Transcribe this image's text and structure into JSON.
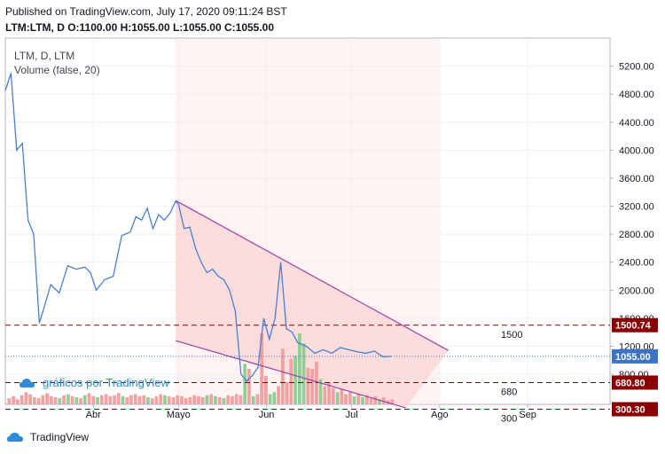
{
  "header": {
    "published": "Published on TradingView.com, July 17, 2020 09:11:24 BST",
    "ohlc": "LTM:LTM, D O:1100.00 H:1055.00 L:1055.00 C:1055.00"
  },
  "overlay": {
    "symbol": "LTM, D, LTM",
    "volume": "Volume (false, 20)"
  },
  "watermark": "gráficos por TradingView",
  "brand": "TradingView",
  "colors": {
    "price_line": "#4a7fd3",
    "channel": "#9c3fa8",
    "shade": "#fcd6d6",
    "level_line": "#8b0000",
    "last_price_badge": "#3d72c7",
    "vol_up": "#8fcf96",
    "vol_down": "#f2a0a0"
  },
  "chart_data": {
    "type": "line",
    "title": "LTM, D, LTM",
    "x_ticks": [
      "Abr",
      "Mayo",
      "Jun",
      "Jul",
      "Ago",
      "Sep"
    ],
    "y_ticks": [
      800,
      1200,
      1600,
      2000,
      2400,
      2800,
      3200,
      3600,
      4000,
      4400,
      4800,
      5200
    ],
    "ylim": [
      370,
      5600
    ],
    "x_range": [
      "2020-03-01",
      "2020-09-30"
    ],
    "grid": true,
    "series": [
      {
        "type": "line",
        "x": [
          "2020-03-01",
          "2020-03-03",
          "2020-03-05",
          "2020-03-07",
          "2020-03-09",
          "2020-03-11",
          "2020-03-13",
          "2020-03-15",
          "2020-03-17",
          "2020-03-20",
          "2020-03-23",
          "2020-03-26",
          "2020-03-29",
          "2020-03-31",
          "2020-04-02",
          "2020-04-05",
          "2020-04-08",
          "2020-04-11",
          "2020-04-14",
          "2020-04-16",
          "2020-04-18",
          "2020-04-20",
          "2020-04-22",
          "2020-04-24",
          "2020-04-26",
          "2020-04-28",
          "2020-04-30",
          "2020-05-01",
          "2020-05-03",
          "2020-05-05",
          "2020-05-07",
          "2020-05-09",
          "2020-05-11",
          "2020-05-13",
          "2020-05-15",
          "2020-05-17",
          "2020-05-19",
          "2020-05-21",
          "2020-05-23",
          "2020-05-25",
          "2020-05-27",
          "2020-05-29",
          "2020-05-31",
          "2020-06-02",
          "2020-06-04",
          "2020-06-06",
          "2020-06-08",
          "2020-06-10",
          "2020-06-12",
          "2020-06-15",
          "2020-06-18",
          "2020-06-21",
          "2020-06-24",
          "2020-06-27",
          "2020-06-30",
          "2020-07-03",
          "2020-07-06",
          "2020-07-09",
          "2020-07-12",
          "2020-07-15"
        ],
        "y": [
          4850,
          5100,
          4000,
          4100,
          3000,
          2800,
          1530,
          1800,
          2080,
          1960,
          2350,
          2300,
          2330,
          2250,
          2000,
          2150,
          2200,
          2780,
          2830,
          3050,
          3000,
          3170,
          2880,
          3080,
          3000,
          3100,
          3270,
          3230,
          2880,
          2900,
          2600,
          2400,
          2250,
          2300,
          2200,
          2150,
          2000,
          1700,
          800,
          700,
          780,
          900,
          1600,
          1300,
          1600,
          2400,
          1450,
          1400,
          1250,
          1200,
          1100,
          1150,
          1100,
          1180,
          1150,
          1120,
          1100,
          1130,
          1050,
          1055
        ]
      },
      {
        "name": "1500",
        "type": "level",
        "value": 1500
      },
      {
        "name": "680",
        "type": "level",
        "value": 680
      },
      {
        "name": "300",
        "type": "level",
        "value": 300
      }
    ],
    "channel": {
      "upper": [
        [
          "2020-04-30",
          3280
        ],
        [
          "2020-08-04",
          1140
        ]
      ],
      "lower": [
        [
          "2020-04-30",
          1280
        ],
        [
          "2020-07-20",
          320
        ]
      ]
    },
    "price_badges": [
      {
        "label": "1500.74",
        "value": 1500.74
      },
      {
        "label": "1055.00",
        "value": 1055.0
      },
      {
        "label": "680.80",
        "value": 680.8
      },
      {
        "label": "300.30",
        "value": 300.3
      }
    ],
    "volume": {
      "up": [
        0,
        0,
        0,
        0,
        0,
        0,
        0,
        0,
        0,
        0,
        0,
        0,
        1,
        0,
        1,
        0,
        1,
        0,
        1,
        0,
        0,
        1,
        0,
        0,
        0,
        0,
        0,
        1,
        0,
        0,
        0,
        0,
        0,
        1,
        0,
        0,
        0,
        1,
        0,
        0,
        0,
        0,
        0,
        0,
        0,
        0,
        0,
        1,
        0,
        1,
        0,
        1,
        0,
        0,
        0,
        0,
        1,
        0,
        1,
        0,
        0,
        0,
        1,
        1,
        0,
        0,
        0,
        0,
        1,
        1,
        1,
        0,
        0,
        0,
        1,
        0,
        0,
        0,
        1,
        0,
        0,
        0,
        1,
        0,
        1,
        0,
        0,
        0,
        1,
        0,
        0,
        0
      ],
      "values": [
        6,
        8,
        5,
        9,
        12,
        10,
        7,
        6,
        9,
        11,
        8,
        7,
        6,
        9,
        10,
        8,
        7,
        6,
        9,
        11,
        8,
        7,
        9,
        10,
        8,
        9,
        11,
        8,
        7,
        9,
        10,
        8,
        9,
        7,
        6,
        8,
        10,
        9,
        8,
        7,
        9,
        8,
        6,
        7,
        9,
        8,
        7,
        9,
        10,
        8,
        7,
        6,
        9,
        8,
        10,
        9,
        40,
        35,
        8,
        10,
        70,
        28,
        10,
        12,
        18,
        55,
        22,
        45,
        48,
        70,
        60,
        36,
        35,
        42,
        25,
        18,
        22,
        16,
        12,
        15,
        10,
        12,
        8,
        10,
        7,
        9,
        6,
        8,
        5,
        7,
        4,
        5
      ]
    }
  }
}
